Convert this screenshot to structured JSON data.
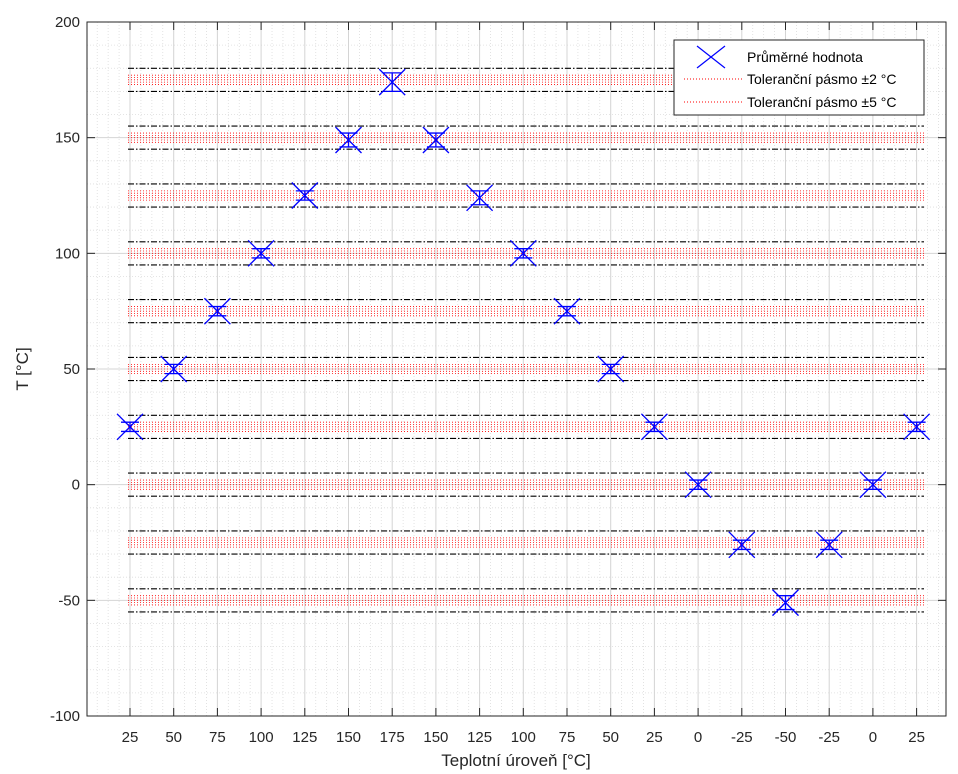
{
  "chart_data": {
    "type": "scatter",
    "xlabel": "Teplotní úroveň [°C]",
    "ylabel": "T [°C]",
    "ylim": [
      -100,
      200
    ],
    "yticks": [
      -100,
      -50,
      0,
      50,
      100,
      150,
      200
    ],
    "grid": true,
    "minor_grid": true,
    "legend_position": "top-right",
    "categories": [
      "25",
      "50",
      "75",
      "100",
      "125",
      "150",
      "175",
      "150",
      "125",
      "100",
      "75",
      "50",
      "25",
      "0",
      "-25",
      "-50",
      "-25",
      "0",
      "25"
    ],
    "series": [
      {
        "name": "Průměrné hodnota",
        "marker": "x",
        "color": "#0000ff",
        "values": [
          25,
          50,
          75,
          100,
          125,
          149,
          174,
          149,
          124,
          100,
          75,
          50,
          25,
          0,
          -26,
          -51,
          -26,
          0,
          25
        ],
        "errors": [
          2,
          2,
          2,
          2,
          2,
          3,
          4,
          3,
          3,
          2,
          2,
          2,
          2,
          2,
          2,
          3,
          2,
          2,
          2
        ]
      },
      {
        "name": "Toleranční pásmo ±2 °C",
        "style": "dotted",
        "color": "#ff0000",
        "levels": [
          175,
          150,
          125,
          100,
          75,
          50,
          25,
          0,
          -25,
          -50
        ],
        "halfwidth": 2
      },
      {
        "name": "Toleranční pásmo ±5 °C",
        "style": "dashdot",
        "color": "#000000",
        "levels": [
          175,
          150,
          125,
          100,
          75,
          50,
          25,
          0,
          -25,
          -50
        ],
        "halfwidth": 5
      }
    ]
  }
}
